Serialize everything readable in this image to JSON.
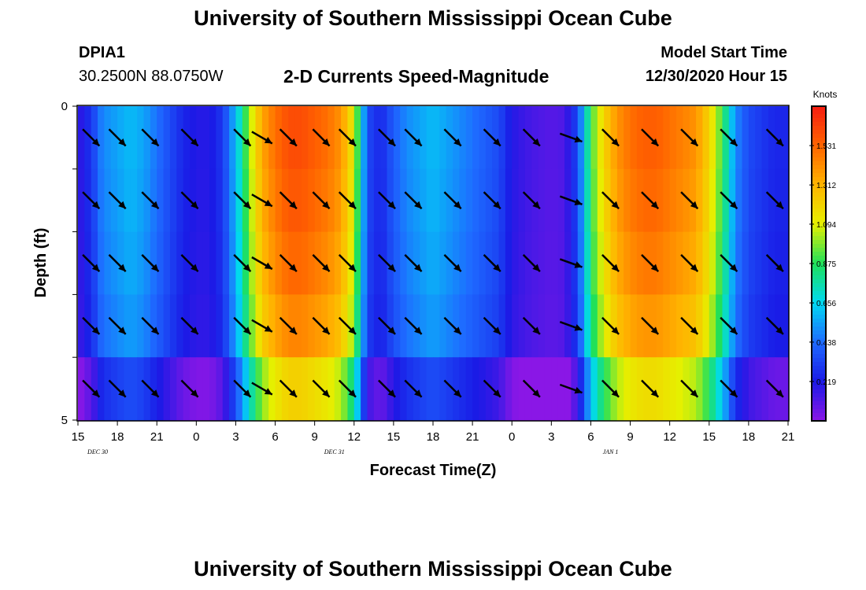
{
  "header": {
    "title": "University of Southern Mississippi Ocean Cube",
    "station_id": "DPIA1",
    "station_coords": "30.2500N 88.0750W",
    "model_start_label": "Model Start Time",
    "model_start_value": "12/30/2020 Hour 15"
  },
  "footer": {
    "title": "University of Southern Mississippi Ocean Cube"
  },
  "chart_data": {
    "type": "heatmap",
    "title": "2-D Currents Speed-Magnitude",
    "xlabel": "Forecast Time(Z)",
    "ylabel": "Depth (ft)",
    "x_tick_labels": [
      "15",
      "18",
      "21",
      "0",
      "3",
      "6",
      "9",
      "12",
      "15",
      "18",
      "21",
      "0",
      "3",
      "6",
      "9",
      "12",
      "15",
      "18",
      "21"
    ],
    "date_labels": [
      {
        "label": "DEC 30",
        "after_tick": 1
      },
      {
        "label": "DEC 31",
        "after_tick": 7
      },
      {
        "label": "JAN 1",
        "after_tick": 14
      }
    ],
    "x_range_hours": [
      0,
      54
    ],
    "y_tick_labels": [
      "0",
      "5"
    ],
    "ylim": [
      0,
      5
    ],
    "depth_rows": 5,
    "colorbar": {
      "title": "Knots",
      "min": 0,
      "max": 1.75,
      "tick_labels": [
        "1.531",
        "1.312",
        "1.094",
        "0.875",
        "0.656",
        "0.438",
        "0.219"
      ],
      "tick_values": [
        1.531,
        1.312,
        1.094,
        0.875,
        0.656,
        0.438,
        0.219
      ],
      "colors": [
        "#8a17e6",
        "#1a1ae6",
        "#1e6bff",
        "#00d9f2",
        "#1fe05a",
        "#e6f000",
        "#ffb400",
        "#ff6400",
        "#f51c10"
      ]
    },
    "speed_profile_hours": [
      0,
      0.6,
      1,
      1.6,
      2,
      3,
      4,
      5,
      6,
      7,
      8,
      9,
      10,
      11,
      12,
      13,
      14,
      15,
      16,
      17,
      18,
      19,
      20,
      21,
      22,
      23,
      24,
      25,
      26,
      27,
      28,
      29,
      30,
      31,
      32,
      33,
      34,
      35,
      36,
      37,
      38,
      39,
      40,
      41,
      42,
      43,
      44,
      45,
      46,
      47,
      48,
      49,
      50,
      51,
      52,
      53,
      54
    ],
    "surface_speed_knots": [
      0.15,
      0.25,
      0.28,
      0.45,
      0.5,
      0.55,
      0.6,
      0.55,
      0.45,
      0.35,
      0.25,
      0.2,
      0.2,
      0.3,
      0.6,
      1.0,
      1.35,
      1.5,
      1.6,
      1.6,
      1.55,
      1.5,
      1.4,
      1.1,
      0.35,
      0.25,
      0.4,
      0.5,
      0.55,
      0.6,
      0.55,
      0.5,
      0.45,
      0.4,
      0.35,
      0.2,
      0.15,
      0.12,
      0.1,
      0.12,
      0.35,
      0.9,
      1.2,
      1.4,
      1.5,
      1.55,
      1.55,
      1.5,
      1.45,
      1.4,
      1.2,
      0.9,
      0.5,
      0.35,
      0.3,
      0.25,
      0.25
    ],
    "depth_speed_scale": [
      1.0,
      0.98,
      0.95,
      0.9,
      0.85
    ],
    "depth_speed_offset": [
      0,
      0,
      0,
      0,
      -0.15
    ],
    "arrow_hours": [
      1,
      3,
      5.5,
      8.5,
      12.5,
      14,
      16,
      18.5,
      20.5,
      23.5,
      25.5,
      28.5,
      31.5,
      34.5,
      37.5,
      40.5,
      43.5,
      46.5,
      49.5,
      53
    ],
    "arrow_rows": [
      0.5,
      1.5,
      2.5,
      3.5,
      4.5
    ],
    "arrow_directions_deg": [
      135,
      135,
      135,
      135,
      135,
      120,
      135,
      135,
      135,
      135,
      135,
      135,
      135,
      135,
      110,
      135,
      135,
      135,
      135,
      135
    ]
  }
}
